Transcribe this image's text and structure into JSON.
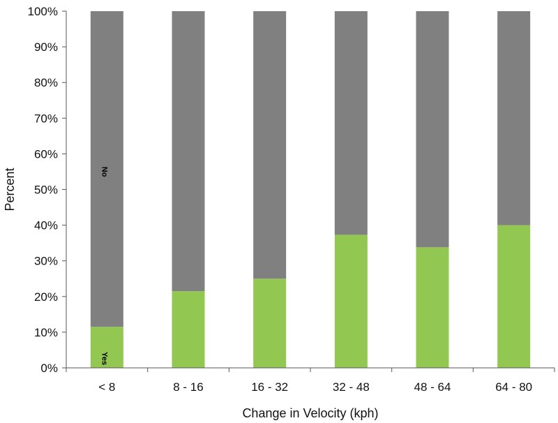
{
  "chart_data": {
    "type": "bar",
    "stacked": true,
    "percent": true,
    "categories": [
      "< 8",
      "8 - 16",
      "16 - 32",
      "32 - 48",
      "48 - 64",
      "64 - 80"
    ],
    "series": [
      {
        "name": "Yes",
        "color": "#92c852",
        "values": [
          11.5,
          21.5,
          25,
          37.3,
          33.8,
          40
        ]
      },
      {
        "name": "No",
        "color": "#808080",
        "values": [
          88.5,
          78.5,
          75,
          62.7,
          66.2,
          60
        ]
      }
    ],
    "xlabel": "Change in Velocity (kph)",
    "ylabel": "Percent",
    "ylim": [
      0,
      100
    ],
    "yticks": [
      "0%",
      "10%",
      "20%",
      "30%",
      "40%",
      "50%",
      "60%",
      "70%",
      "80%",
      "90%",
      "100%"
    ],
    "grid": false,
    "legend": "none",
    "inline_labels": {
      "yes": "Yes",
      "no": "No"
    }
  }
}
